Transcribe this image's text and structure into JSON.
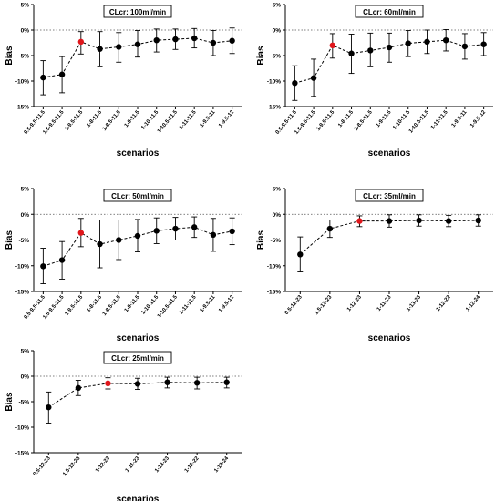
{
  "chart_data": [
    {
      "type": "scatter",
      "title": "CLcr: 100ml/min",
      "xlabel": "scenarios",
      "ylabel": "Bias",
      "ylim": [
        -15,
        5
      ],
      "yticks": [
        "5%",
        "0%",
        "-5%",
        "-10%",
        "-15%"
      ],
      "reference_line": 0,
      "highlight_index": 2,
      "categories": [
        "0.5-9.5-11.5",
        "1.5-9.5-11.5",
        "1-9.5-11.5",
        "1-8-11.5",
        "1-8.5-11.5",
        "1-9-11.5",
        "1-10-11.5",
        "1-10.5-11.5",
        "1-11-11.5",
        "1-9.5-11",
        "1-9.5-12"
      ],
      "values": [
        -9.3,
        -8.7,
        -2.3,
        -3.7,
        -3.3,
        -2.8,
        -2.0,
        -1.8,
        -1.6,
        -2.5,
        -2.1
      ],
      "err_low": [
        -12.7,
        -12.3,
        -4.7,
        -7.2,
        -6.3,
        -5.3,
        -4.3,
        -3.8,
        -3.5,
        -5.0,
        -4.6
      ],
      "err_high": [
        -6.0,
        -5.2,
        -0.3,
        -0.3,
        -0.5,
        -0.1,
        0.2,
        0.2,
        0.3,
        -0.1,
        0.4
      ]
    },
    {
      "type": "scatter",
      "title": "CLcr: 60ml/min",
      "xlabel": "scenarios",
      "ylabel": "Bias",
      "ylim": [
        -15,
        5
      ],
      "yticks": [
        "5%",
        "0%",
        "-5%",
        "-10%",
        "-15%"
      ],
      "reference_line": 0,
      "highlight_index": 2,
      "categories": [
        "0.5-9.5-11.5",
        "1.5-9.5-11.5",
        "1-9.5-11.5",
        "1-8-11.5",
        "1-8.5-11.5",
        "1-9-11.5",
        "1-10-11.5",
        "1-10.5-11.5",
        "1-11-11.5",
        "1-9.5-11",
        "1-9.5-12"
      ],
      "values": [
        -10.4,
        -9.4,
        -3.0,
        -4.6,
        -4.0,
        -3.4,
        -2.6,
        -2.3,
        -2.0,
        -3.2,
        -2.8
      ],
      "err_low": [
        -13.8,
        -13.0,
        -5.5,
        -8.5,
        -7.2,
        -6.3,
        -5.2,
        -4.6,
        -4.1,
        -5.7,
        -5.0
      ],
      "err_high": [
        -7.0,
        -5.7,
        -0.7,
        -0.8,
        -0.6,
        -0.6,
        -0.1,
        0.0,
        0.1,
        -0.7,
        -0.5
      ]
    },
    {
      "type": "scatter",
      "title": "CLcr: 50ml/min",
      "xlabel": "scenarios",
      "ylabel": "Bias",
      "ylim": [
        -15,
        5
      ],
      "yticks": [
        "5%",
        "0%",
        "-5%",
        "-10%",
        "-15%"
      ],
      "reference_line": 0,
      "highlight_index": 2,
      "categories": [
        "0.5-9.5-11.5",
        "1.5-9.5-11.5",
        "1-9.5-11.5",
        "1-8-11.5",
        "1-8.5-11.5",
        "1-9-11.5",
        "1-10-11.5",
        "1-10.5-11.5",
        "1-11-11.5",
        "1-9.5-11",
        "1-9.5-12"
      ],
      "values": [
        -10.1,
        -8.9,
        -3.6,
        -5.8,
        -5.0,
        -4.2,
        -3.2,
        -2.8,
        -2.5,
        -4.0,
        -3.3
      ],
      "err_low": [
        -13.5,
        -12.6,
        -6.3,
        -10.4,
        -8.8,
        -7.3,
        -5.7,
        -5.0,
        -4.5,
        -7.2,
        -5.9
      ],
      "err_high": [
        -6.6,
        -5.3,
        -0.8,
        -1.1,
        -1.1,
        -1.0,
        -0.7,
        -0.6,
        -0.5,
        -0.8,
        -0.7
      ]
    },
    {
      "type": "scatter",
      "title": "CLcr: 35ml/min",
      "xlabel": "scenarios",
      "ylabel": "Bias",
      "ylim": [
        -15,
        5
      ],
      "yticks": [
        "5%",
        "0%",
        "-5%",
        "-10%",
        "-15%"
      ],
      "reference_line": 0,
      "highlight_index": 2,
      "categories": [
        "0.5-12-23",
        "1.5-12-23",
        "1-12-23",
        "1-11-23",
        "1-13-23",
        "1-12-22",
        "1-12-24"
      ],
      "values": [
        -7.8,
        -2.8,
        -1.3,
        -1.3,
        -1.2,
        -1.3,
        -1.2
      ],
      "err_low": [
        -11.2,
        -4.5,
        -2.4,
        -2.5,
        -2.3,
        -2.4,
        -2.3
      ],
      "err_high": [
        -4.4,
        -1.1,
        -0.3,
        -0.1,
        -0.1,
        -0.2,
        -0.1
      ]
    },
    {
      "type": "scatter",
      "title": "CLcr: 25ml/min",
      "xlabel": "scenarios",
      "ylabel": "Bias",
      "ylim": [
        -15,
        5
      ],
      "yticks": [
        "5%",
        "0%",
        "-5%",
        "-10%",
        "-15%"
      ],
      "reference_line": 0,
      "highlight_index": 2,
      "categories": [
        "0.5-12-23",
        "1.5-12-23",
        "1-12-23",
        "1-11-23",
        "1-13-23",
        "1-12-22",
        "1-12-24"
      ],
      "values": [
        -6.1,
        -2.3,
        -1.4,
        -1.5,
        -1.2,
        -1.3,
        -1.2
      ],
      "err_low": [
        -9.2,
        -3.8,
        -2.5,
        -2.6,
        -2.3,
        -2.5,
        -2.3
      ],
      "err_high": [
        -3.1,
        -0.8,
        -0.3,
        -0.4,
        -0.2,
        -0.2,
        -0.2
      ]
    }
  ],
  "colors": {
    "point": "#000000",
    "highlight_point": "#e0161b",
    "axis": "#000000",
    "reference_line": "#555555"
  }
}
